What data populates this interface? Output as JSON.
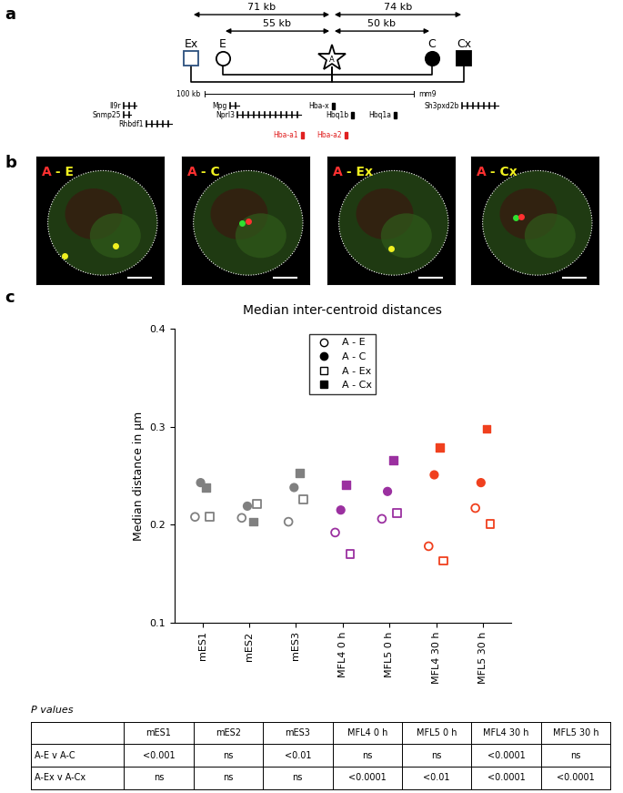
{
  "panel_labels": [
    "a",
    "b",
    "c"
  ],
  "diagram": {
    "distances": [
      {
        "label": "71 kb",
        "from": "Ex",
        "to": "A"
      },
      {
        "label": "55 kb",
        "from": "E",
        "to": "A"
      },
      {
        "label": "50 kb",
        "from": "A",
        "to": "C"
      },
      {
        "label": "74 kb",
        "from": "A",
        "to": "Cx"
      }
    ],
    "elements": [
      {
        "label": "Ex",
        "marker": "open square",
        "color": "#2b4f7e"
      },
      {
        "label": "E",
        "marker": "open circle",
        "color": "#000000"
      },
      {
        "label": "A",
        "marker": "open star",
        "color": "#000000"
      },
      {
        "label": "C",
        "marker": "filled circle",
        "color": "#000000"
      },
      {
        "label": "Cx",
        "marker": "filled square",
        "color": "#000000"
      }
    ],
    "scale_bar": "100 kb",
    "assembly": "mm9",
    "genes": [
      {
        "label": "Il9r",
        "color": "#000000"
      },
      {
        "label": "Snmp25",
        "color": "#000000"
      },
      {
        "label": "Rhbdf1",
        "color": "#000000"
      },
      {
        "label": "Mpg",
        "color": "#000000"
      },
      {
        "label": "Nprl3",
        "color": "#000000"
      },
      {
        "label": "Hba-x",
        "color": "#000000"
      },
      {
        "label": "Hbq1b",
        "color": "#000000"
      },
      {
        "label": "Hbq1a",
        "color": "#000000"
      },
      {
        "label": "Sh3pxd2b",
        "color": "#000000"
      },
      {
        "label": "Hba-a1",
        "color": "#e02020"
      },
      {
        "label": "Hba-a2",
        "color": "#e02020"
      }
    ]
  },
  "images": [
    {
      "parts": [
        "A",
        " - E"
      ],
      "colors": [
        "#ff3030",
        "#f0f020"
      ]
    },
    {
      "parts": [
        "A",
        " - C"
      ],
      "colors": [
        "#ff3030",
        "#f0f020"
      ]
    },
    {
      "parts": [
        "A",
        " - Ex"
      ],
      "colors": [
        "#ff3030",
        "#f0f020"
      ]
    },
    {
      "parts": [
        "A",
        " - Cx"
      ],
      "colors": [
        "#ff3030",
        "#f0f020"
      ]
    }
  ],
  "chart_data": {
    "type": "scatter",
    "title": "Median inter-centroid distances",
    "y_label": "Median distance in µm",
    "categories": [
      "mES1",
      "mES2",
      "mES3",
      "MFL4 0 h",
      "MFL5 0 h",
      "MFL4 30 h",
      "MFL5 30 h"
    ],
    "colors": [
      "#808080",
      "#808080",
      "#808080",
      "#9b30a0",
      "#9b30a0",
      "#f0401e",
      "#f0401e"
    ],
    "series": [
      {
        "name": "A - E",
        "marker": "open circle",
        "values": [
          0.208,
          0.207,
          0.203,
          0.192,
          0.206,
          0.178,
          0.217
        ]
      },
      {
        "name": "A - C",
        "marker": "filled circle",
        "values": [
          0.243,
          0.219,
          0.238,
          0.215,
          0.234,
          0.251,
          0.243
        ]
      },
      {
        "name": "A - Ex",
        "marker": "open square",
        "values": [
          0.208,
          0.221,
          0.226,
          0.17,
          0.212,
          0.163,
          0.201
        ]
      },
      {
        "name": "A - Cx",
        "marker": "filled square",
        "values": [
          0.238,
          0.203,
          0.253,
          0.241,
          0.266,
          0.279,
          0.298
        ]
      }
    ],
    "ylim": [
      0.1,
      0.4
    ],
    "yticks": [
      0.1,
      0.2,
      0.3,
      0.4
    ],
    "legend": "upper center",
    "grid": false
  },
  "table": {
    "title": "P values",
    "header": [
      "",
      "mES1",
      "mES2",
      "mES3",
      "MFL4 0 h",
      "MFL5 0 h",
      "MFL4 30 h",
      "MFL5 30 h"
    ],
    "rows": [
      [
        "A-E v A-C",
        "<0.001",
        "ns",
        "<0.01",
        "ns",
        "ns",
        "<0.0001",
        "ns"
      ],
      [
        "A-Ex v A-Cx",
        "ns",
        "ns",
        "ns",
        "<0.0001",
        "<0.01",
        "<0.0001",
        "<0.0001"
      ]
    ]
  }
}
